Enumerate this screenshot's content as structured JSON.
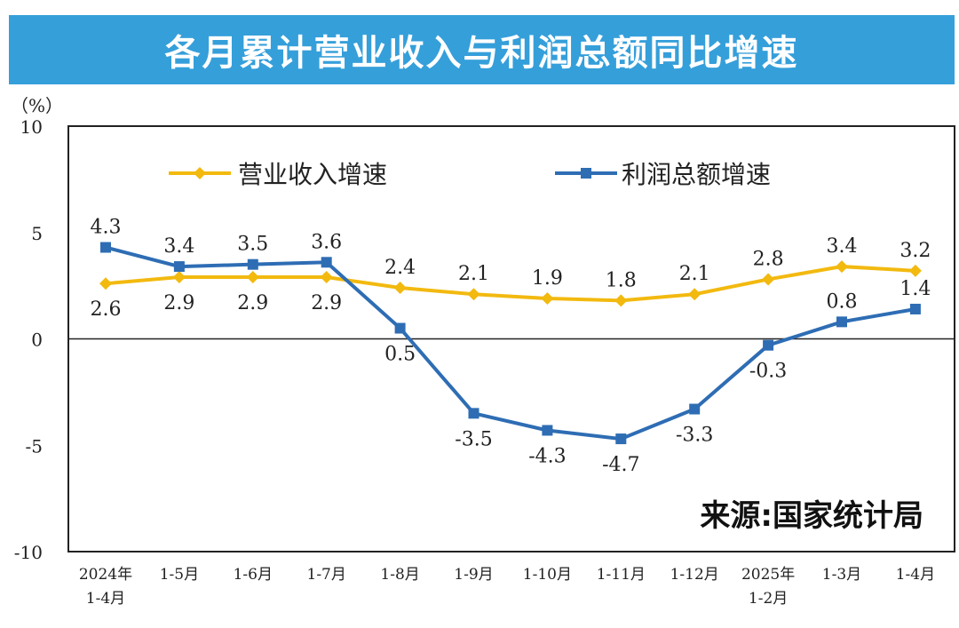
{
  "chart_data": {
    "type": "line",
    "title": "各月累计营业收入与利润总额同比增速",
    "ylabel": "（%）",
    "ylim": [
      -10,
      10
    ],
    "yticks": [
      10,
      5,
      0,
      -5,
      -10
    ],
    "categories": [
      [
        "2024年",
        "1-4月"
      ],
      [
        "1-5月"
      ],
      [
        "1-6月"
      ],
      [
        "1-7月"
      ],
      [
        "1-8月"
      ],
      [
        "1-9月"
      ],
      [
        "1-10月"
      ],
      [
        "1-11月"
      ],
      [
        "1-12月"
      ],
      [
        "2025年",
        "1-2月"
      ],
      [
        "1-3月"
      ],
      [
        "1-4月"
      ]
    ],
    "series": [
      {
        "name": "营业收入增速",
        "color": "#f2b90f",
        "marker": "diamond",
        "values": [
          2.6,
          2.9,
          2.9,
          2.9,
          2.4,
          2.1,
          1.9,
          1.8,
          2.1,
          2.8,
          3.4,
          3.2
        ]
      },
      {
        "name": "利润总额增速",
        "color": "#2e6db4",
        "marker": "square",
        "values": [
          4.3,
          3.4,
          3.5,
          3.6,
          0.5,
          -3.5,
          -4.3,
          -4.7,
          -3.3,
          -0.3,
          0.8,
          1.4
        ]
      }
    ],
    "legend": "top",
    "source": "来源:国家统计局",
    "grid": false
  }
}
